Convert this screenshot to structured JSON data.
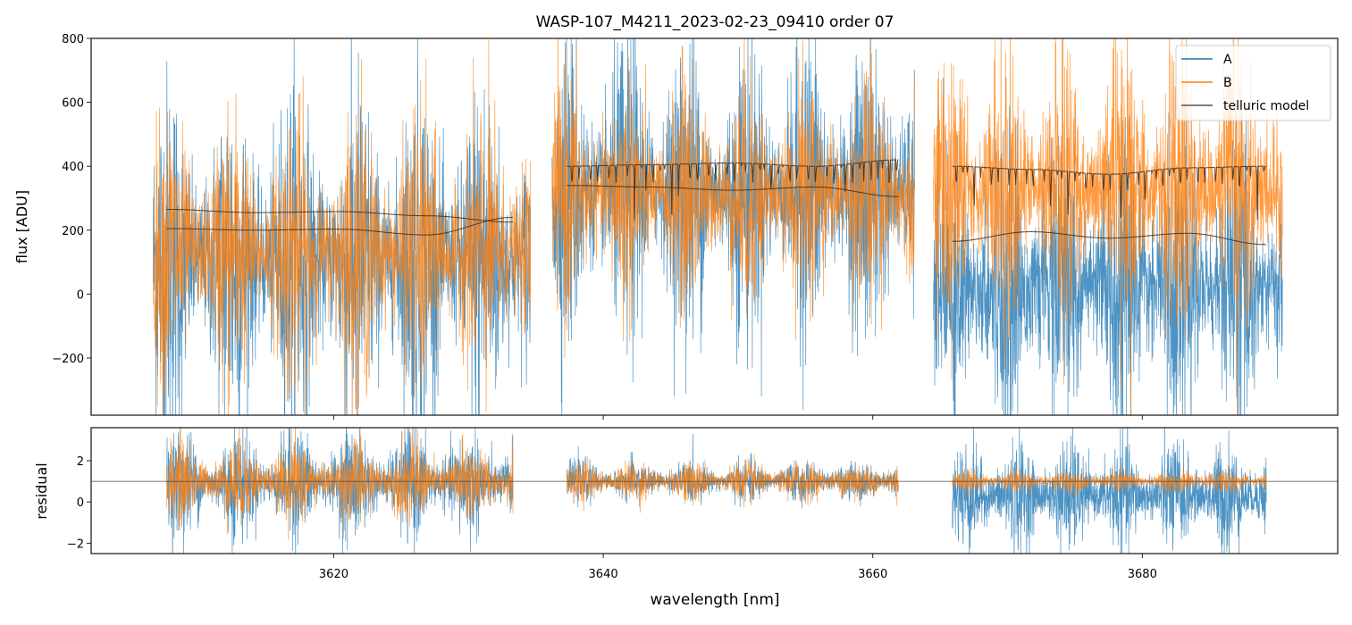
{
  "chart_data": [
    {
      "type": "line",
      "title": "WASP-107_M4211_2023-02-23_09410  order 07",
      "xlabel": "",
      "ylabel": "flux [ADU]",
      "xlim": [
        3602,
        3694.5
      ],
      "ylim": [
        -379,
        800
      ],
      "yticks": [
        -200,
        0,
        200,
        400,
        600,
        800
      ],
      "ytick_labels": [
        "−200",
        "0",
        "200",
        "400",
        "600",
        "800"
      ],
      "xticks": [
        3620,
        3640,
        3660,
        3680
      ],
      "legend": {
        "placement": "top-right",
        "entries": [
          "A",
          "B",
          "telluric model"
        ]
      },
      "colors": {
        "A": "#1f77b4",
        "B": "#ff7f0e",
        "telluric model": "#3a3a3a"
      },
      "segments": [
        {
          "x": [
            3606.6,
            3634.6
          ],
          "A": {
            "mean": 100,
            "sigma": 260
          },
          "B": {
            "mean": 130,
            "sigma": 200
          },
          "model_x": [
            3607.6,
            3633.3
          ],
          "model_A": [
            265,
            255,
            258,
            245,
            225
          ],
          "model_B": [
            205,
            200,
            203,
            185,
            240
          ],
          "lines": 0
        },
        {
          "x": [
            3636.2,
            3663.1
          ],
          "A": {
            "mean": 320,
            "sigma": 220
          },
          "B": {
            "mean": 310,
            "sigma": 170
          },
          "model_x": [
            3637.3,
            3661.9
          ],
          "model_A": [
            400,
            405,
            410,
            400,
            420
          ],
          "model_B": [
            340,
            335,
            325,
            335,
            305
          ],
          "lines": 1
        },
        {
          "x": [
            3664.5,
            3690.4
          ],
          "A": {
            "mean": 20,
            "sigma": 210
          },
          "B": {
            "mean": 330,
            "sigma": 200
          },
          "model_x": [
            3665.9,
            3689.2
          ],
          "model_A": [
            400,
            390,
            375,
            395,
            400
          ],
          "model_B": [
            165,
            195,
            175,
            190,
            155
          ],
          "lines": 1
        }
      ]
    },
    {
      "type": "line",
      "xlabel": "wavelength [nm]",
      "ylabel": "residual",
      "xlim": [
        3602,
        3694.5
      ],
      "ylim": [
        -2.5,
        3.6
      ],
      "yticks": [
        -2,
        0,
        2
      ],
      "ytick_labels": [
        "−2",
        "0",
        "2"
      ],
      "xticks": [
        3620,
        3640,
        3660,
        3680
      ],
      "xtick_labels": [
        "3620",
        "3640",
        "3660",
        "3680"
      ],
      "reference_line": 1,
      "segments": [
        {
          "x": [
            3607.6,
            3633.3
          ],
          "A": {
            "mean": 0.9,
            "sigma": 1.2
          },
          "B": {
            "mean": 1.0,
            "sigma": 0.9
          }
        },
        {
          "x": [
            3637.3,
            3661.9
          ],
          "A": {
            "mean": 1.0,
            "sigma": 0.45
          },
          "B": {
            "mean": 1.0,
            "sigma": 0.45
          }
        },
        {
          "x": [
            3665.9,
            3689.2
          ],
          "A": {
            "mean": 0.3,
            "sigma": 1.2
          },
          "B": {
            "mean": 1.0,
            "sigma": 0.25
          }
        }
      ]
    }
  ]
}
